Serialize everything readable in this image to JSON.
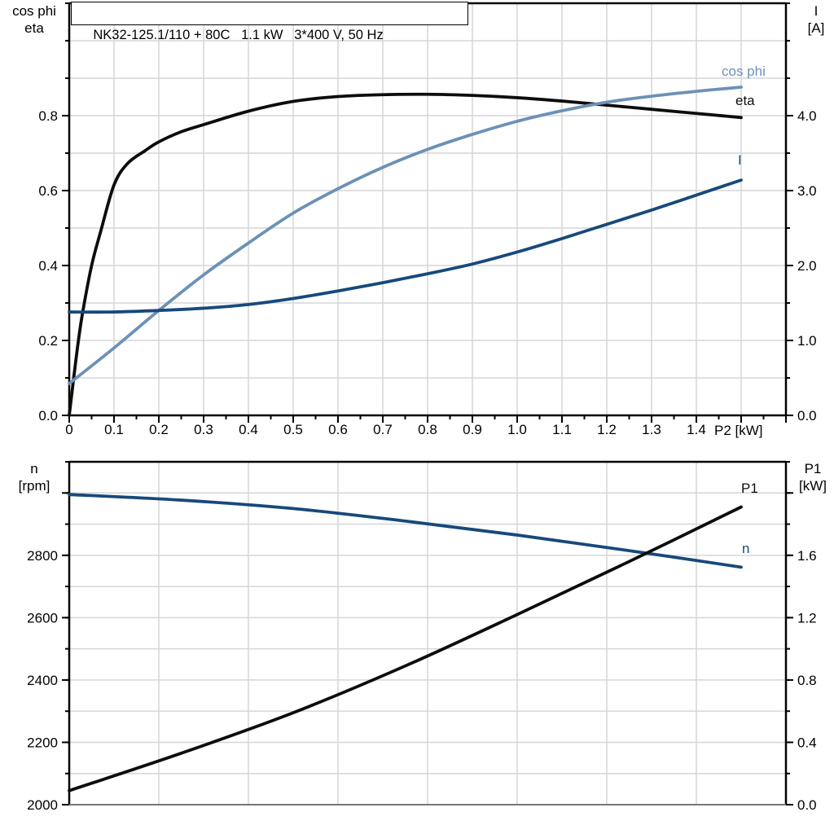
{
  "header": {
    "title": "NK32-125.1/110 + 80C   1.1 kW   3*400 V, 50 Hz"
  },
  "colors": {
    "eta_black": "#0d0d0d",
    "cos_phi_steel_blue": "#6d91b6",
    "current_navy": "#17497b",
    "grid_gray": "#d6d6da",
    "axis_black": "#000000",
    "bottom_edge_gray": "#777777"
  },
  "chart_data": [
    {
      "type": "line",
      "title": "NK32-125.1/110 + 80C   1.1 kW   3*400 V, 50 Hz",
      "grid": true,
      "x_axis": {
        "label": "P2 [kW]",
        "range": [
          0,
          1.6
        ],
        "tick_values": [
          0,
          0.1,
          0.2,
          0.3,
          0.4,
          0.5,
          0.6,
          0.7,
          0.8,
          0.9,
          1.0,
          1.1,
          1.2,
          1.3,
          1.4
        ],
        "tick_labels": [
          "0",
          "0.1",
          "0.2",
          "0.3",
          "0.4",
          "0.5",
          "0.6",
          "0.7",
          "0.8",
          "0.9",
          "1.0",
          "1.1",
          "1.2",
          "1.3",
          "1.4"
        ],
        "extra_tick_values": [
          1.5,
          1.6
        ],
        "minor_step": 0.05,
        "grid_step": 0.1
      },
      "left_axis": {
        "title": "cos phi\neta",
        "range": [
          0,
          1.1
        ],
        "tick_values": [
          0,
          0.2,
          0.4,
          0.6,
          0.8
        ],
        "tick_labels": [
          "0.0",
          "0.2",
          "0.4",
          "0.6",
          "0.8"
        ],
        "minor_step": 0.1,
        "grid_step": 0.1
      },
      "right_axis": {
        "title": "I\n[A]",
        "range": [
          0,
          5.5
        ],
        "tick_values": [
          0,
          1,
          2,
          3,
          4
        ],
        "tick_labels": [
          "0.0",
          "1.0",
          "2.0",
          "3.0",
          "4.0"
        ],
        "minor_step": 0.5
      },
      "series": [
        {
          "name": "eta",
          "axis": "left",
          "color": "#0d0d0d",
          "x": [
            0,
            0.005,
            0.01,
            0.02,
            0.03,
            0.05,
            0.07,
            0.1,
            0.13,
            0.17,
            0.2,
            0.25,
            0.3,
            0.4,
            0.5,
            0.6,
            0.7,
            0.8,
            0.9,
            1.0,
            1.1,
            1.2,
            1.3,
            1.4,
            1.5
          ],
          "y": [
            0,
            0.05,
            0.1,
            0.195,
            0.275,
            0.4,
            0.49,
            0.615,
            0.672,
            0.707,
            0.73,
            0.757,
            0.776,
            0.812,
            0.838,
            0.851,
            0.856,
            0.857,
            0.854,
            0.848,
            0.839,
            0.828,
            0.817,
            0.806,
            0.795
          ]
        },
        {
          "name": "cos phi",
          "axis": "left",
          "color": "#6d91b6",
          "x": [
            0,
            0.1,
            0.2,
            0.3,
            0.4,
            0.5,
            0.6,
            0.7,
            0.8,
            0.9,
            1.0,
            1.1,
            1.2,
            1.3,
            1.4,
            1.5
          ],
          "y": [
            0.085,
            0.18,
            0.28,
            0.375,
            0.46,
            0.54,
            0.605,
            0.662,
            0.71,
            0.75,
            0.785,
            0.813,
            0.836,
            0.852,
            0.865,
            0.876
          ]
        },
        {
          "name": "I",
          "axis": "right",
          "color": "#17497b",
          "x": [
            0,
            0.1,
            0.2,
            0.3,
            0.4,
            0.5,
            0.6,
            0.7,
            0.8,
            0.9,
            1.0,
            1.1,
            1.2,
            1.3,
            1.4,
            1.5
          ],
          "y": [
            1.38,
            1.38,
            1.4,
            1.43,
            1.48,
            1.56,
            1.66,
            1.77,
            1.89,
            2.02,
            2.18,
            2.36,
            2.55,
            2.74,
            2.94,
            3.14
          ]
        }
      ]
    },
    {
      "type": "line",
      "grid": true,
      "x_axis": {
        "label": "",
        "range": [
          0,
          1.6
        ],
        "tick_values": [],
        "tick_labels": [],
        "minor_step": 0,
        "grid_step": 0.2
      },
      "left_axis": {
        "title": "n\n[rpm]",
        "range": [
          2000,
          3100
        ],
        "tick_values": [
          2000,
          2200,
          2400,
          2600,
          2800
        ],
        "tick_labels": [
          "2000",
          "2200",
          "2400",
          "2600",
          "2800"
        ],
        "minor_step": 100,
        "grid_step": 100,
        "extra_tick_values": [
          3000
        ]
      },
      "right_axis": {
        "title": "P1\n[kW]",
        "range": [
          0,
          2.2
        ],
        "tick_values": [
          0,
          0.4,
          0.8,
          1.2,
          1.6
        ],
        "tick_labels": [
          "0.0",
          "0.4",
          "0.8",
          "1.2",
          "1.6"
        ],
        "minor_step": 0.2,
        "extra_tick_values": [
          2.0
        ]
      },
      "series": [
        {
          "name": "n",
          "axis": "left",
          "color": "#17497b",
          "x": [
            0,
            0.25,
            0.5,
            0.75,
            1.0,
            1.25,
            1.5
          ],
          "y": [
            2995,
            2977,
            2950,
            2910,
            2865,
            2815,
            2762
          ]
        },
        {
          "name": "P1",
          "axis": "right",
          "color": "#0d0d0d",
          "x": [
            0,
            0.25,
            0.5,
            0.75,
            1.0,
            1.25,
            1.5
          ],
          "y": [
            0.09,
            0.33,
            0.59,
            0.89,
            1.22,
            1.56,
            1.91
          ]
        }
      ]
    }
  ]
}
